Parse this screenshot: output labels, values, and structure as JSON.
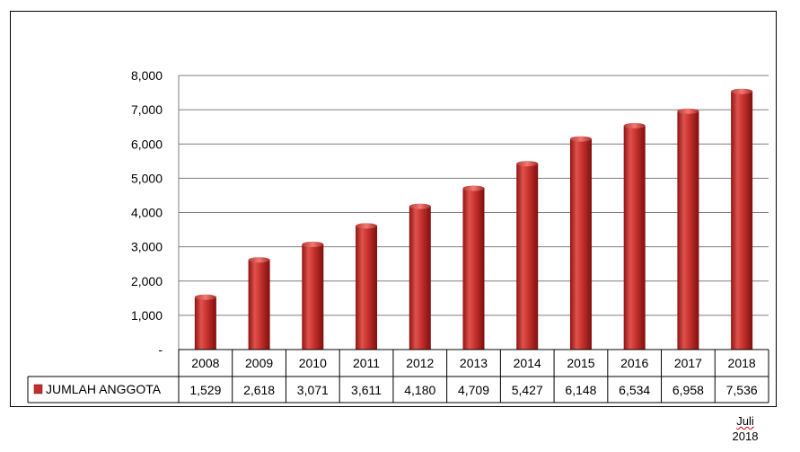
{
  "chart_data": {
    "type": "bar",
    "categories": [
      "2008",
      "2009",
      "2010",
      "2011",
      "2012",
      "2013",
      "2014",
      "2015",
      "2016",
      "2017",
      "2018"
    ],
    "series": [
      {
        "name": "JUMLAH ANGGOTA",
        "values": [
          1529,
          2618,
          3071,
          3611,
          4180,
          4709,
          5427,
          6148,
          6534,
          6958,
          7536
        ]
      }
    ],
    "value_labels": [
      "1,529",
      "2,618",
      "3,071",
      "3,611",
      "4,180",
      "4,709",
      "5,427",
      "6,148",
      "6,534",
      "6,958",
      "7,536"
    ],
    "y_ticks": [
      "-",
      "1,000",
      "2,000",
      "3,000",
      "4,000",
      "5,000",
      "6,000",
      "7,000",
      "8,000"
    ],
    "ylim": [
      0,
      8000
    ],
    "grid": true,
    "legend": "data-table",
    "bar_color": "#c0302e"
  },
  "footnote": {
    "line1": "Juli",
    "line2": "2018"
  }
}
